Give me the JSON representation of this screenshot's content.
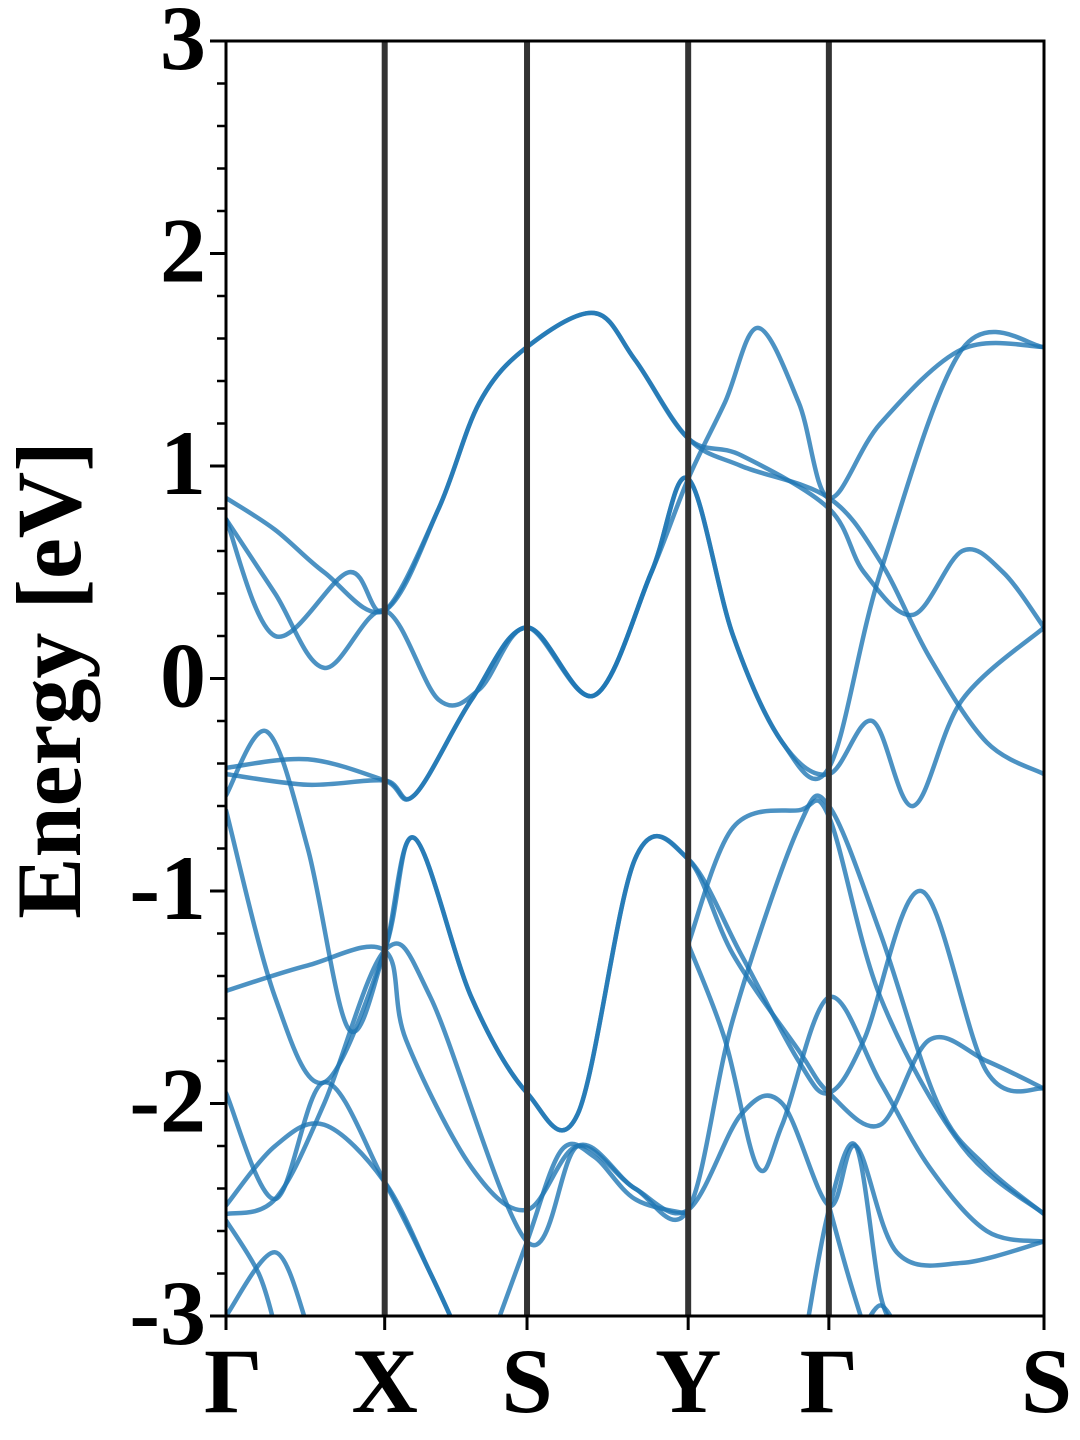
{
  "chart_data": {
    "type": "line",
    "title": "",
    "xlabel": "",
    "ylabel": "Energy [eV]",
    "ylim": [
      -3,
      3
    ],
    "yticks": [
      {
        "value": 3,
        "label": "3"
      },
      {
        "value": 2,
        "label": "2"
      },
      {
        "value": 1,
        "label": "1"
      },
      {
        "value": 0,
        "label": "0"
      },
      {
        "value": -1,
        "label": "-1"
      },
      {
        "value": -2,
        "label": "-2"
      },
      {
        "value": -3,
        "label": "-3"
      }
    ],
    "minor_ytick_step": 0.2,
    "kpoints": [
      {
        "label": "Γ",
        "x": 0.0
      },
      {
        "label": "X",
        "x": 0.194
      },
      {
        "label": "S",
        "x": 0.368
      },
      {
        "label": "Y",
        "x": 0.565
      },
      {
        "label": "Γ",
        "x": 0.737
      },
      {
        "label": "S",
        "x": 1.0
      }
    ],
    "xlim": [
      0,
      1
    ],
    "band_color": "#1f77b4",
    "vline_color": "#333333",
    "bands": [
      [
        [
          0.0,
          0.85
        ],
        [
          0.06,
          0.7
        ],
        [
          0.12,
          0.5
        ],
        [
          0.194,
          0.32
        ],
        [
          0.26,
          0.8
        ],
        [
          0.31,
          1.3
        ],
        [
          0.368,
          1.56
        ],
        [
          0.45,
          1.72
        ],
        [
          0.5,
          1.5
        ],
        [
          0.565,
          1.13
        ],
        [
          0.63,
          1.0
        ],
        [
          0.737,
          0.85
        ],
        [
          0.8,
          0.55
        ],
        [
          0.86,
          0.1
        ],
        [
          0.93,
          -0.3
        ],
        [
          1.0,
          -0.45
        ]
      ],
      [
        [
          0.0,
          0.75
        ],
        [
          0.06,
          0.2
        ],
        [
          0.15,
          0.5
        ],
        [
          0.194,
          0.32
        ],
        [
          0.26,
          0.8
        ],
        [
          0.31,
          1.3
        ],
        [
          0.368,
          1.56
        ],
        [
          0.45,
          1.72
        ],
        [
          0.5,
          1.5
        ],
        [
          0.565,
          1.13
        ],
        [
          0.63,
          1.05
        ],
        [
          0.737,
          0.8
        ],
        [
          0.78,
          0.5
        ],
        [
          0.84,
          0.3
        ],
        [
          0.9,
          0.6
        ],
        [
          0.95,
          0.5
        ],
        [
          1.0,
          0.24
        ]
      ],
      [
        [
          0.0,
          0.75
        ],
        [
          0.06,
          0.4
        ],
        [
          0.12,
          0.05
        ],
        [
          0.194,
          0.32
        ],
        [
          0.26,
          -0.1
        ],
        [
          0.31,
          -0.05
        ],
        [
          0.368,
          0.24
        ],
        [
          0.45,
          -0.08
        ],
        [
          0.52,
          0.5
        ],
        [
          0.565,
          0.94
        ],
        [
          0.61,
          1.3
        ],
        [
          0.65,
          1.65
        ],
        [
          0.7,
          1.3
        ],
        [
          0.737,
          0.85
        ],
        [
          0.8,
          1.2
        ],
        [
          0.9,
          1.55
        ],
        [
          1.0,
          1.56
        ]
      ],
      [
        [
          0.0,
          -0.42
        ],
        [
          0.1,
          -0.38
        ],
        [
          0.194,
          -0.48
        ],
        [
          0.23,
          -0.55
        ],
        [
          0.3,
          -0.1
        ],
        [
          0.368,
          0.24
        ],
        [
          0.45,
          -0.08
        ],
        [
          0.52,
          0.5
        ],
        [
          0.565,
          0.94
        ],
        [
          0.62,
          0.2
        ],
        [
          0.68,
          -0.3
        ],
        [
          0.737,
          -0.42
        ],
        [
          0.8,
          0.5
        ],
        [
          0.9,
          1.55
        ],
        [
          1.0,
          1.56
        ]
      ],
      [
        [
          0.0,
          -0.45
        ],
        [
          0.1,
          -0.5
        ],
        [
          0.194,
          -0.48
        ],
        [
          0.23,
          -0.55
        ],
        [
          0.3,
          -0.1
        ],
        [
          0.368,
          0.24
        ],
        [
          0.45,
          -0.08
        ],
        [
          0.52,
          0.5
        ],
        [
          0.565,
          0.94
        ],
        [
          0.62,
          0.2
        ],
        [
          0.68,
          -0.3
        ],
        [
          0.737,
          -0.45
        ],
        [
          0.79,
          -0.2
        ],
        [
          0.84,
          -0.6
        ],
        [
          0.9,
          -0.1
        ],
        [
          1.0,
          0.24
        ]
      ],
      [
        [
          0.0,
          -0.55
        ],
        [
          0.05,
          -0.25
        ],
        [
          0.1,
          -0.8
        ],
        [
          0.15,
          -1.65
        ],
        [
          0.194,
          -1.28
        ],
        [
          0.23,
          -0.75
        ],
        [
          0.3,
          -1.5
        ],
        [
          0.368,
          -1.95
        ],
        [
          0.43,
          -2.05
        ],
        [
          0.5,
          -0.85
        ],
        [
          0.565,
          -0.85
        ],
        [
          0.62,
          -1.3
        ],
        [
          0.7,
          -1.75
        ],
        [
          0.737,
          -1.95
        ],
        [
          0.8,
          -2.1
        ],
        [
          0.86,
          -1.7
        ],
        [
          0.93,
          -1.8
        ],
        [
          1.0,
          -1.93
        ]
      ],
      [
        [
          0.0,
          -0.62
        ],
        [
          0.06,
          -1.5
        ],
        [
          0.12,
          -1.9
        ],
        [
          0.194,
          -1.28
        ],
        [
          0.23,
          -0.75
        ],
        [
          0.3,
          -1.5
        ],
        [
          0.368,
          -1.95
        ],
        [
          0.43,
          -2.05
        ],
        [
          0.5,
          -0.85
        ],
        [
          0.565,
          -0.85
        ],
        [
          0.63,
          -1.3
        ],
        [
          0.7,
          -1.8
        ],
        [
          0.737,
          -1.95
        ],
        [
          0.78,
          -1.7
        ],
        [
          0.85,
          -1.0
        ],
        [
          0.93,
          -1.85
        ],
        [
          1.0,
          -1.93
        ]
      ],
      [
        [
          0.0,
          -1.47
        ],
        [
          0.1,
          -1.35
        ],
        [
          0.194,
          -1.28
        ],
        [
          0.22,
          -1.7
        ],
        [
          0.3,
          -2.3
        ],
        [
          0.368,
          -2.5
        ],
        [
          0.43,
          -2.2
        ],
        [
          0.5,
          -2.4
        ],
        [
          0.565,
          -2.5
        ],
        [
          0.62,
          -1.6
        ],
        [
          0.7,
          -0.7
        ],
        [
          0.737,
          -0.6
        ],
        [
          0.8,
          -1.2
        ],
        [
          0.87,
          -2.0
        ],
        [
          0.93,
          -2.3
        ],
        [
          1.0,
          -2.52
        ]
      ],
      [
        [
          0.0,
          -1.95
        ],
        [
          0.06,
          -2.45
        ],
        [
          0.12,
          -1.9
        ],
        [
          0.194,
          -2.37
        ],
        [
          0.25,
          -2.8
        ],
        [
          0.28,
          -3.05
        ]
      ],
      [
        [
          0.0,
          -2.48
        ],
        [
          0.06,
          -2.2
        ],
        [
          0.12,
          -2.1
        ],
        [
          0.194,
          -2.37
        ],
        [
          0.25,
          -2.8
        ],
        [
          0.28,
          -3.05
        ]
      ],
      [
        [
          0.0,
          -2.52
        ],
        [
          0.06,
          -2.45
        ],
        [
          0.12,
          -2.0
        ],
        [
          0.194,
          -1.28
        ],
        [
          0.25,
          -1.5
        ],
        [
          0.368,
          -2.65
        ],
        [
          0.43,
          -2.2
        ],
        [
          0.5,
          -2.4
        ],
        [
          0.565,
          -2.5
        ],
        [
          0.63,
          -2.05
        ],
        [
          0.68,
          -2.0
        ],
        [
          0.737,
          -2.48
        ],
        [
          0.77,
          -2.2
        ],
        [
          0.82,
          -2.7
        ],
        [
          0.9,
          -2.75
        ],
        [
          1.0,
          -2.65
        ]
      ],
      [
        [
          0.0,
          -2.55
        ],
        [
          0.04,
          -2.8
        ],
        [
          0.06,
          -3.05
        ]
      ],
      [
        [
          0.0,
          -3.0
        ],
        [
          0.06,
          -2.7
        ],
        [
          0.1,
          -3.05
        ]
      ],
      [
        [
          0.33,
          -3.05
        ],
        [
          0.368,
          -2.65
        ],
        [
          0.41,
          -2.22
        ],
        [
          0.45,
          -2.25
        ],
        [
          0.5,
          -2.45
        ],
        [
          0.565,
          -2.52
        ]
      ],
      [
        [
          0.565,
          -1.25
        ],
        [
          0.62,
          -0.7
        ],
        [
          0.7,
          -0.62
        ],
        [
          0.737,
          -0.65
        ],
        [
          0.8,
          -1.5
        ],
        [
          0.9,
          -2.2
        ],
        [
          1.0,
          -2.52
        ]
      ],
      [
        [
          0.565,
          -1.25
        ],
        [
          0.61,
          -1.7
        ],
        [
          0.65,
          -2.3
        ],
        [
          0.68,
          -2.1
        ],
        [
          0.737,
          -1.5
        ],
        [
          0.8,
          -1.9
        ],
        [
          0.86,
          -2.3
        ],
        [
          0.93,
          -2.6
        ],
        [
          1.0,
          -2.65
        ]
      ],
      [
        [
          0.71,
          -3.05
        ],
        [
          0.737,
          -2.5
        ],
        [
          0.77,
          -2.2
        ],
        [
          0.8,
          -2.9
        ],
        [
          0.82,
          -3.05
        ]
      ],
      [
        [
          0.737,
          -2.48
        ],
        [
          0.76,
          -2.8
        ],
        [
          0.78,
          -3.05
        ]
      ],
      [
        [
          0.78,
          -3.05
        ],
        [
          0.8,
          -2.95
        ],
        [
          0.82,
          -3.05
        ]
      ]
    ]
  }
}
